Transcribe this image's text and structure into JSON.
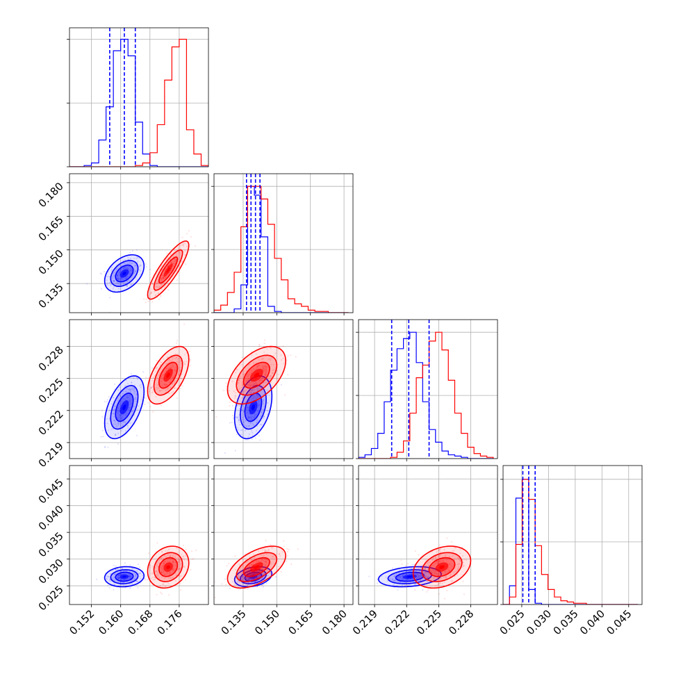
{
  "chart_data": {
    "type": "corner",
    "colors": {
      "blue": "#0000ff",
      "red": "#ff0000"
    },
    "series": [
      {
        "color": "blue"
      },
      {
        "color": "red"
      }
    ],
    "parameters": [
      {
        "range": [
          0.146,
          0.184
        ],
        "ticks": [
          0.152,
          0.16,
          0.168,
          0.176
        ],
        "tick_labels": [
          "0.152",
          "0.160",
          "0.168",
          "0.176"
        ]
      },
      {
        "range": [
          0.122,
          0.184
        ],
        "ticks": [
          0.135,
          0.15,
          0.165,
          0.18
        ],
        "tick_labels": [
          "0.135",
          "0.150",
          "0.165",
          "0.180"
        ]
      },
      {
        "range": [
          0.2175,
          0.2305
        ],
        "ticks": [
          0.219,
          0.222,
          0.225,
          0.228
        ],
        "tick_labels": [
          "0.219",
          "0.222",
          "0.225",
          "0.228"
        ]
      },
      {
        "range": [
          0.0215,
          0.0475
        ],
        "ticks": [
          0.025,
          0.03,
          0.035,
          0.04,
          0.045
        ],
        "tick_labels": [
          "0.025",
          "0.030",
          "0.035",
          "0.040",
          "0.045"
        ]
      }
    ],
    "histograms": [
      {
        "edges": [
          0.146,
          0.148,
          0.15,
          0.152,
          0.154,
          0.156,
          0.158,
          0.16,
          0.162,
          0.164,
          0.166,
          0.168,
          0.17,
          0.172,
          0.174,
          0.176,
          0.178,
          0.18,
          0.182,
          0.184
        ],
        "max": 1.09,
        "series": [
          {
            "name": "",
            "values": [
              0,
              0,
              0.01,
              0.03,
              0.21,
              0.47,
              0.91,
              1.0,
              0.87,
              0.35,
              0.1,
              0.01,
              0,
              0,
              0,
              0,
              0,
              0,
              0
            ]
          },
          {
            "name": "",
            "values": [
              0,
              0,
              0,
              0,
              0,
              0,
              0,
              0,
              0,
              0.01,
              0.03,
              0.11,
              0.33,
              0.68,
              0.94,
              1.0,
              0.29,
              0.1,
              0.01
            ]
          }
        ],
        "quantiles": [
          0.157,
          0.161,
          0.164
        ]
      },
      {
        "edges": [
          0.122,
          0.125,
          0.128,
          0.131,
          0.134,
          0.137,
          0.14,
          0.143,
          0.146,
          0.149,
          0.152,
          0.155,
          0.158,
          0.161,
          0.164,
          0.167,
          0.17,
          0.173,
          0.176,
          0.179,
          0.182
        ],
        "max": 1.1,
        "series": [
          {
            "name": "",
            "values": [
              0,
              0,
              0,
              0.03,
              0.22,
              1.0,
              0.93,
              0.6,
              0.05,
              0.01,
              0,
              0,
              0,
              0,
              0,
              0,
              0,
              0,
              0,
              0
            ]
          },
          {
            "name": "",
            "values": [
              0.02,
              0.06,
              0.16,
              0.32,
              0.68,
              1.0,
              1.0,
              0.9,
              0.7,
              0.43,
              0.26,
              0.11,
              0.07,
              0.05,
              0.02,
              0.01,
              0.01,
              0,
              0,
              0
            ]
          }
        ],
        "quantiles": [
          0.1365,
          0.1385,
          0.1405,
          0.1425
        ]
      },
      {
        "edges": [
          0.2175,
          0.2181,
          0.2187,
          0.2193,
          0.2199,
          0.2205,
          0.2211,
          0.2217,
          0.2223,
          0.2229,
          0.2235,
          0.2241,
          0.2247,
          0.2253,
          0.2259,
          0.2265,
          0.2271,
          0.2277,
          0.2283,
          0.2289,
          0.2295,
          0.2301
        ],
        "max": 1.1,
        "series": [
          {
            "name": "",
            "values": [
              0.01,
              0.03,
              0.08,
              0.2,
              0.45,
              0.7,
              0.87,
              0.95,
              1.0,
              0.76,
              0.45,
              0.23,
              0.13,
              0.06,
              0.03,
              0.02,
              0.01,
              0,
              0,
              0,
              0
            ]
          },
          {
            "name": "",
            "values": [
              0,
              0,
              0,
              0,
              0,
              0.01,
              0.05,
              0.14,
              0.36,
              0.64,
              0.74,
              0.93,
              1.0,
              0.86,
              0.62,
              0.36,
              0.2,
              0.09,
              0.04,
              0.02,
              0.01
            ]
          }
        ],
        "quantiles": [
          0.2206,
          0.2222,
          0.2241
        ]
      },
      {
        "edges": [
          0.0215,
          0.0227,
          0.0239,
          0.0251,
          0.0263,
          0.0275,
          0.0287,
          0.0299,
          0.0311,
          0.0323,
          0.0335,
          0.0347,
          0.0359,
          0.0371,
          0.0383,
          0.0395,
          0.0407,
          0.0419,
          0.0431,
          0.0443,
          0.0455,
          0.0467
        ],
        "max": 1.11,
        "series": [
          {
            "name": "",
            "values": [
              0,
              0.15,
              0.85,
              1.0,
              0.12,
              0.01,
              0,
              0,
              0,
              0,
              0,
              0,
              0,
              0,
              0,
              0,
              0,
              0,
              0,
              0,
              0
            ]
          },
          {
            "name": "",
            "values": [
              0,
              0.06,
              0.48,
              1.0,
              0.84,
              0.47,
              0.24,
              0.12,
              0.06,
              0.03,
              0.02,
              0.01,
              0.01,
              0,
              0,
              0,
              0,
              0,
              0,
              0,
              0
            ]
          }
        ],
        "quantiles": [
          0.0252,
          0.0263,
          0.0275
        ]
      }
    ],
    "posteriors": [
      {
        "mean": [
          0.161,
          0.1395,
          0.2223,
          0.0267
        ],
        "sd": [
          0.0022,
          0.0034,
          0.0012,
          0.00077
        ],
        "corr": [
          [
            1,
            0.4,
            0.5,
            0.1
          ],
          [
            0.4,
            1,
            0.35,
            0.3
          ],
          [
            0.5,
            0.35,
            1,
            0.25
          ],
          [
            0.1,
            0.3,
            0.25,
            1
          ]
        ]
      },
      {
        "mean": [
          0.173,
          0.141,
          0.2253,
          0.0285
        ],
        "sd": [
          0.0023,
          0.0053,
          0.0011,
          0.0016
        ],
        "corr": [
          [
            1,
            0.85,
            0.55,
            0.2
          ],
          [
            0.85,
            1,
            0.5,
            0.55
          ],
          [
            0.55,
            0.5,
            1,
            0.3
          ],
          [
            0.2,
            0.55,
            0.3,
            1
          ]
        ]
      }
    ]
  }
}
